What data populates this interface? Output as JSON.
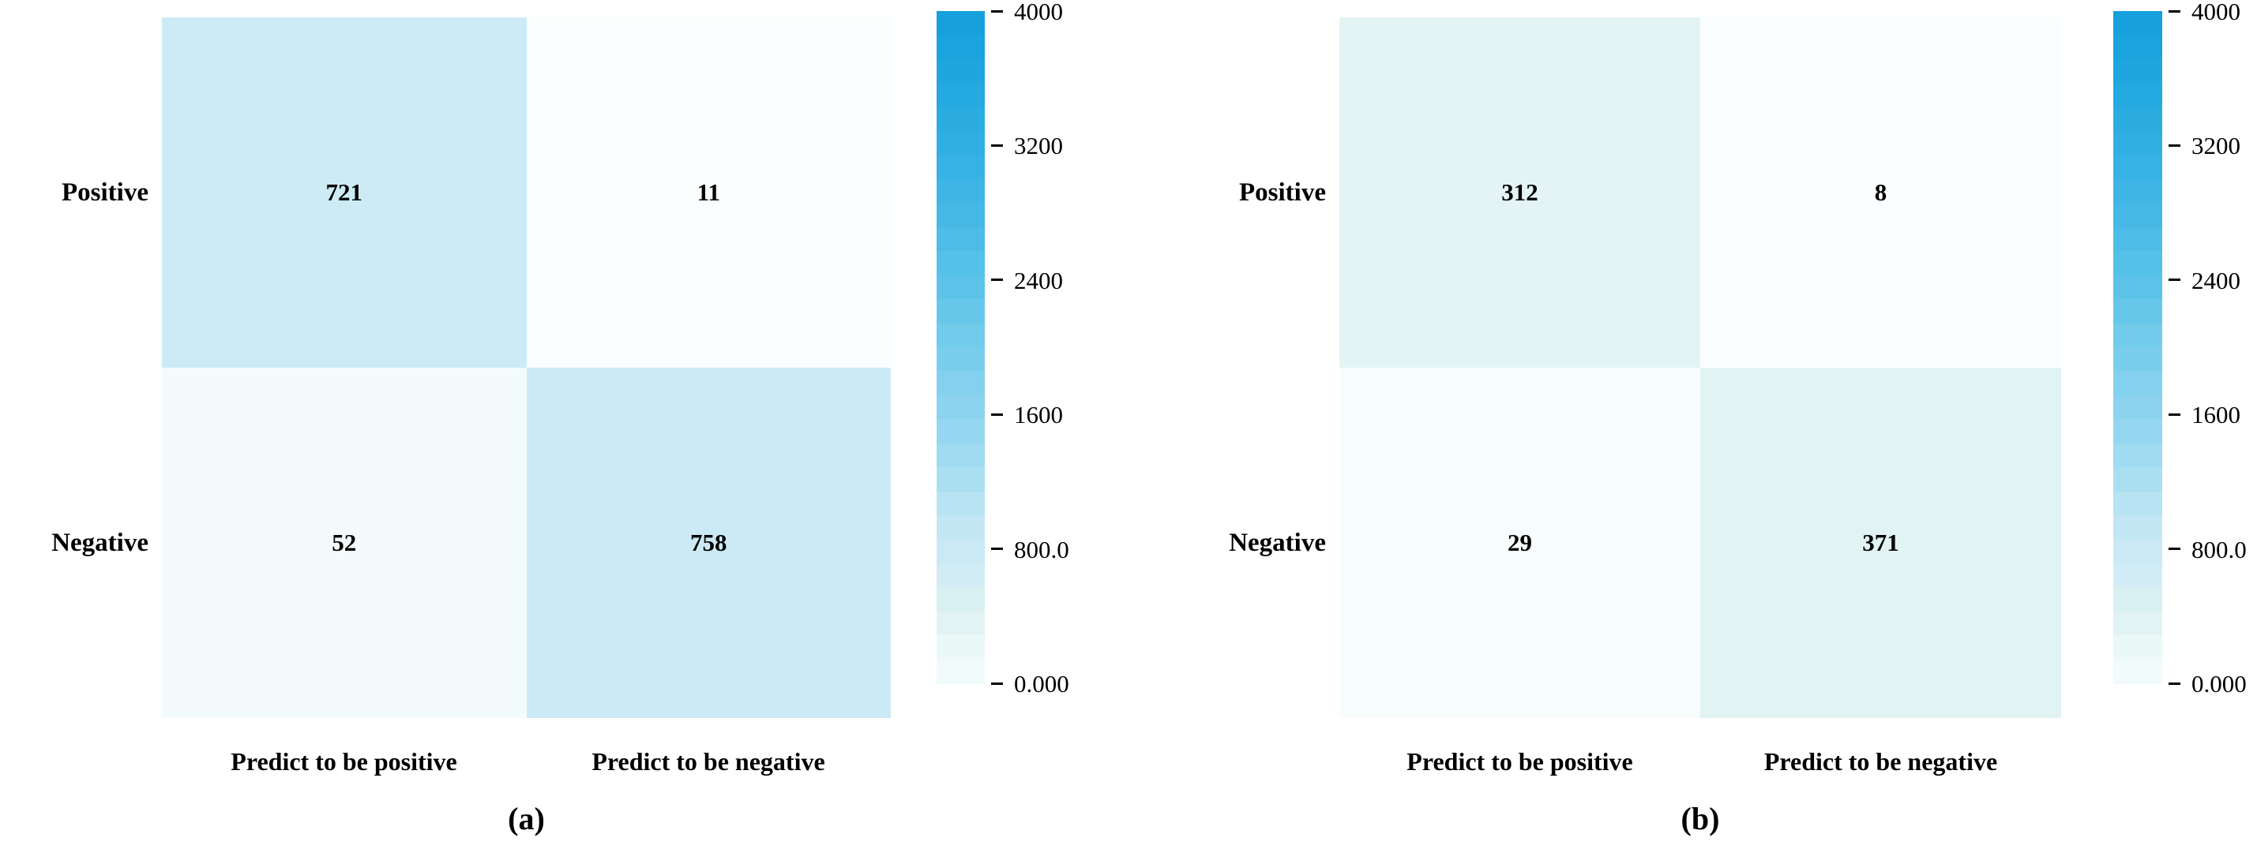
{
  "figure": {
    "background": "#ffffff",
    "text_color": "#000000"
  },
  "colors": {
    "colormap_stops": [
      [
        0.0,
        "#fcffff"
      ],
      [
        0.013,
        "#f3fbfc"
      ],
      [
        0.05,
        "#ebf8f8"
      ],
      [
        0.08,
        "#e4f4f4"
      ],
      [
        0.13,
        "#d8eff2"
      ],
      [
        0.19,
        "#cbeaf5"
      ],
      [
        0.25,
        "#bfe5f4"
      ],
      [
        0.3,
        "#abdff2"
      ],
      [
        0.4,
        "#8ed4ef"
      ],
      [
        0.5,
        "#76cdec"
      ],
      [
        0.6,
        "#5ac2e9"
      ],
      [
        0.7,
        "#44b8e6"
      ],
      [
        0.8,
        "#30afe3"
      ],
      [
        0.9,
        "#20a7df"
      ],
      [
        1.0,
        "#149fdb"
      ]
    ]
  },
  "chart_data": [
    {
      "type": "heatmap",
      "caption": "(a)",
      "rows": [
        "Positive",
        "Negative"
      ],
      "columns": [
        "Predict to be positive",
        "Predict to be negative"
      ],
      "values": [
        [
          721,
          11
        ],
        [
          52,
          758
        ]
      ],
      "vmin": 0,
      "vmax": 4000,
      "grid": false,
      "legend_position": "right-colorbar",
      "colorbar_ticks": [
        {
          "value": 4000,
          "label": "4000"
        },
        {
          "value": 3200,
          "label": "3200"
        },
        {
          "value": 2400,
          "label": "2400"
        },
        {
          "value": 1600,
          "label": "1600"
        },
        {
          "value": 800,
          "label": "800.0"
        },
        {
          "value": 0,
          "label": "0.000"
        }
      ]
    },
    {
      "type": "heatmap",
      "caption": "(b)",
      "rows": [
        "Positive",
        "Negative"
      ],
      "columns": [
        "Predict to be positive",
        "Predict to be negative"
      ],
      "values": [
        [
          312,
          8
        ],
        [
          29,
          371
        ]
      ],
      "vmin": 0,
      "vmax": 4000,
      "grid": false,
      "legend_position": "right-colorbar",
      "colorbar_ticks": [
        {
          "value": 4000,
          "label": "4000"
        },
        {
          "value": 3200,
          "label": "3200"
        },
        {
          "value": 2400,
          "label": "2400"
        },
        {
          "value": 1600,
          "label": "1600"
        },
        {
          "value": 800,
          "label": "800.0"
        },
        {
          "value": 0,
          "label": "0.000"
        }
      ]
    }
  ]
}
